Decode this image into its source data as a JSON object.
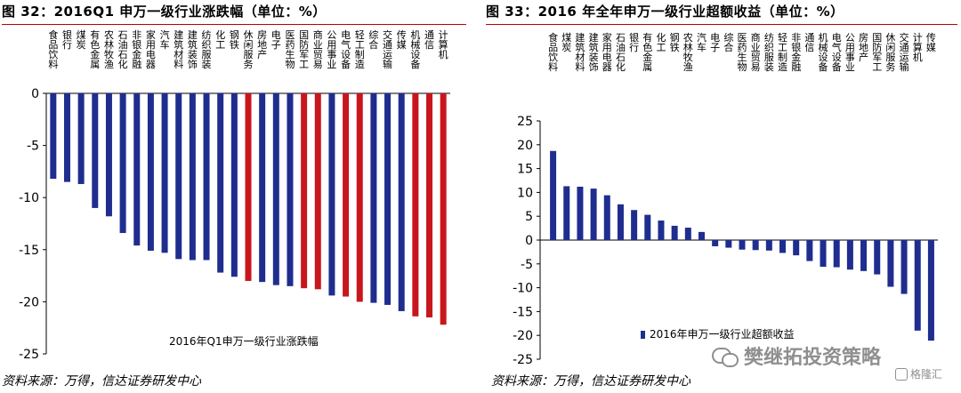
{
  "left_panel": {
    "title": "图 32：2016Q1 申万一级行业涨跌幅（单位：%）",
    "source": "资料来源：万得，信达证券研发中心"
  },
  "right_panel": {
    "title": "图 33：2016 年全年申万一级行业超额收益（单位：%）",
    "source": "资料来源：万得，信达证券研发中心"
  },
  "watermark": {
    "text": "樊继拓投资策略",
    "icon": "wechat-icon"
  },
  "gelonghui": {
    "text": "格隆汇",
    "icon": "gelonghui-icon"
  },
  "colors": {
    "blue": "#1f2d8f",
    "red": "#c8161d"
  },
  "chart_data": [
    {
      "type": "bar",
      "title": "",
      "legend": "2016年Q1申万一级行业涨跌幅",
      "xlabel": "",
      "ylabel": "",
      "ylim": [
        -25,
        0
      ],
      "yticks": [
        0,
        -5,
        -10,
        -15,
        -20,
        -25
      ],
      "categories": [
        "食品饮料",
        "银行",
        "煤炭",
        "有色金属",
        "农林牧渔",
        "石油石化",
        "非银金融",
        "家用电器",
        "汽车",
        "建筑材料",
        "建筑装饰",
        "纺织服装",
        "化工",
        "钢铁",
        "休闲服务",
        "房地产",
        "电子",
        "医药生物",
        "国防军工",
        "商业贸易",
        "公用事业",
        "电气设备",
        "轻工制造",
        "综合",
        "交通运输",
        "传媒",
        "机械设备",
        "通信",
        "计算机"
      ],
      "values": [
        -8.2,
        -8.5,
        -8.7,
        -11.0,
        -11.8,
        -13.4,
        -14.6,
        -15.1,
        -15.3,
        -15.9,
        -16.0,
        -16.0,
        -17.2,
        -17.6,
        -18.0,
        -18.1,
        -18.4,
        -18.5,
        -18.7,
        -18.8,
        -19.4,
        -19.5,
        -20.0,
        -20.1,
        -20.3,
        -20.9,
        -21.4,
        -21.5,
        -22.2
      ],
      "bar_colors": [
        "blue",
        "blue",
        "blue",
        "blue",
        "blue",
        "blue",
        "blue",
        "blue",
        "blue",
        "blue",
        "blue",
        "blue",
        "blue",
        "blue",
        "red",
        "blue",
        "blue",
        "blue",
        "red",
        "red",
        "blue",
        "red",
        "red",
        "blue",
        "blue",
        "blue",
        "red",
        "red",
        "red"
      ]
    },
    {
      "type": "bar",
      "title": "",
      "legend": "2016年申万一级行业超额收益",
      "xlabel": "",
      "ylabel": "",
      "ylim": [
        -25,
        25
      ],
      "yticks": [
        25,
        20,
        15,
        10,
        5,
        0,
        -5,
        -10,
        -15,
        -20,
        -25
      ],
      "categories": [
        "食品饮料",
        "煤炭",
        "建筑材料",
        "建筑装饰",
        "家用电器",
        "石油石化",
        "银行",
        "有色金属",
        "化工",
        "钢铁",
        "农林牧渔",
        "汽车",
        "电子",
        "综合",
        "医药生物",
        "商业贸易",
        "纺织服装",
        "轻工制造",
        "非银金融",
        "通信",
        "机械设备",
        "电气设备",
        "公用事业",
        "房地产",
        "国防军工",
        "休闲服务",
        "交通运输",
        "计算机",
        "传媒"
      ],
      "values": [
        18.7,
        11.3,
        11.2,
        10.8,
        9.4,
        7.5,
        6.3,
        5.3,
        4.1,
        3.0,
        2.6,
        1.7,
        -1.3,
        -1.6,
        -2.0,
        -2.1,
        -2.2,
        -2.7,
        -3.2,
        -4.4,
        -5.6,
        -5.7,
        -6.2,
        -6.5,
        -7.2,
        -9.8,
        -11.3,
        -19.0,
        -21.1
      ]
    }
  ]
}
